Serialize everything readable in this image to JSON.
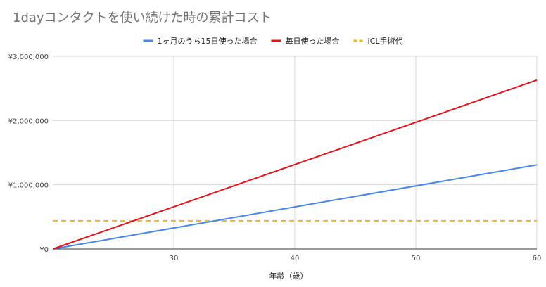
{
  "chart_data": {
    "type": "line",
    "title": "1dayコンタクトを使い続けた時の累計コスト",
    "xlabel": "年齢（歳）",
    "ylabel": "",
    "xlim": [
      20,
      60
    ],
    "ylim": [
      0,
      3000000
    ],
    "x_ticks": [
      30,
      40,
      50,
      60
    ],
    "y_ticks": [
      0,
      1000000,
      2000000,
      3000000
    ],
    "y_tick_labels": [
      "¥0",
      "¥1,000,000",
      "¥2,000,000",
      "¥3,000,000"
    ],
    "grid": true,
    "legend_position": "top",
    "series": [
      {
        "name": "1ヶ月のうち15日使った場合",
        "color": "#4a86e8",
        "style": "solid",
        "x": [
          20,
          60
        ],
        "y": [
          0,
          1310000
        ]
      },
      {
        "name": "毎日使った場合",
        "color": "#e8141c",
        "style": "solid",
        "x": [
          20,
          60
        ],
        "y": [
          0,
          2630000
        ]
      },
      {
        "name": "ICL手術代",
        "color": "#f2b51b",
        "style": "dashed",
        "x": [
          20,
          60
        ],
        "y": [
          440000,
          440000
        ]
      }
    ]
  }
}
